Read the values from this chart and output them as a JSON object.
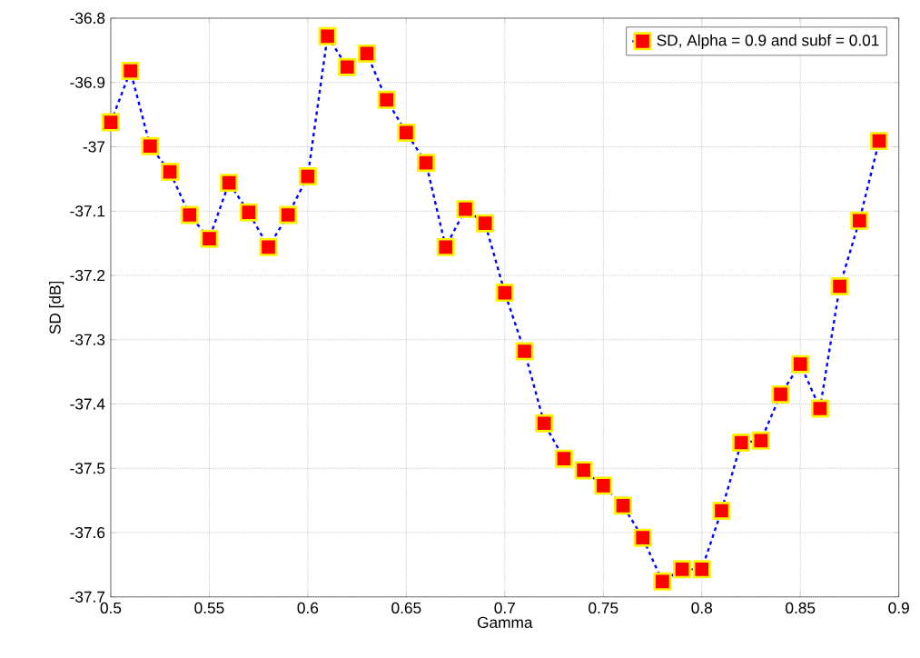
{
  "chart_data": {
    "type": "line",
    "xlabel": "Gamma",
    "ylabel": "SD [dB]",
    "x": [
      0.5,
      0.51,
      0.52,
      0.53,
      0.54,
      0.55,
      0.56,
      0.57,
      0.58,
      0.59,
      0.6,
      0.61,
      0.62,
      0.63,
      0.64,
      0.65,
      0.66,
      0.67,
      0.68,
      0.69,
      0.7,
      0.71,
      0.72,
      0.73,
      0.74,
      0.75,
      0.76,
      0.77,
      0.78,
      0.79,
      0.8,
      0.81,
      0.82,
      0.83,
      0.84,
      0.85,
      0.86,
      0.87,
      0.88,
      0.89
    ],
    "series": [
      {
        "name": "SD, Alpha = 0.9 and subf = 0.01",
        "color": "#0000ff",
        "values": [
          -36.962,
          -36.882,
          -36.999,
          -37.039,
          -37.106,
          -37.143,
          -37.056,
          -37.102,
          -37.156,
          -37.106,
          -37.046,
          -36.828,
          -36.876,
          -36.855,
          -36.927,
          -36.978,
          -37.025,
          -37.156,
          -37.097,
          -37.119,
          -37.227,
          -37.318,
          -37.43,
          -37.485,
          -37.503,
          -37.527,
          -37.558,
          -37.608,
          -37.676,
          -37.657,
          -37.657,
          -37.566,
          -37.46,
          -37.457,
          -37.385,
          -37.338,
          -37.407,
          -37.217,
          -37.115,
          -36.991
        ]
      }
    ],
    "xlim": [
      0.5,
      0.9
    ],
    "ylim": [
      -37.7,
      -36.8
    ],
    "xticks": [
      0.5,
      0.55,
      0.6,
      0.65,
      0.7,
      0.75,
      0.8,
      0.85,
      0.9
    ],
    "yticks": [
      -37.7,
      -37.6,
      -37.5,
      -37.4,
      -37.3,
      -37.2,
      -37.1,
      -37,
      -36.9,
      -36.8
    ],
    "grid": true,
    "legend": "top right",
    "marker": "square",
    "line_style": "dashed"
  }
}
